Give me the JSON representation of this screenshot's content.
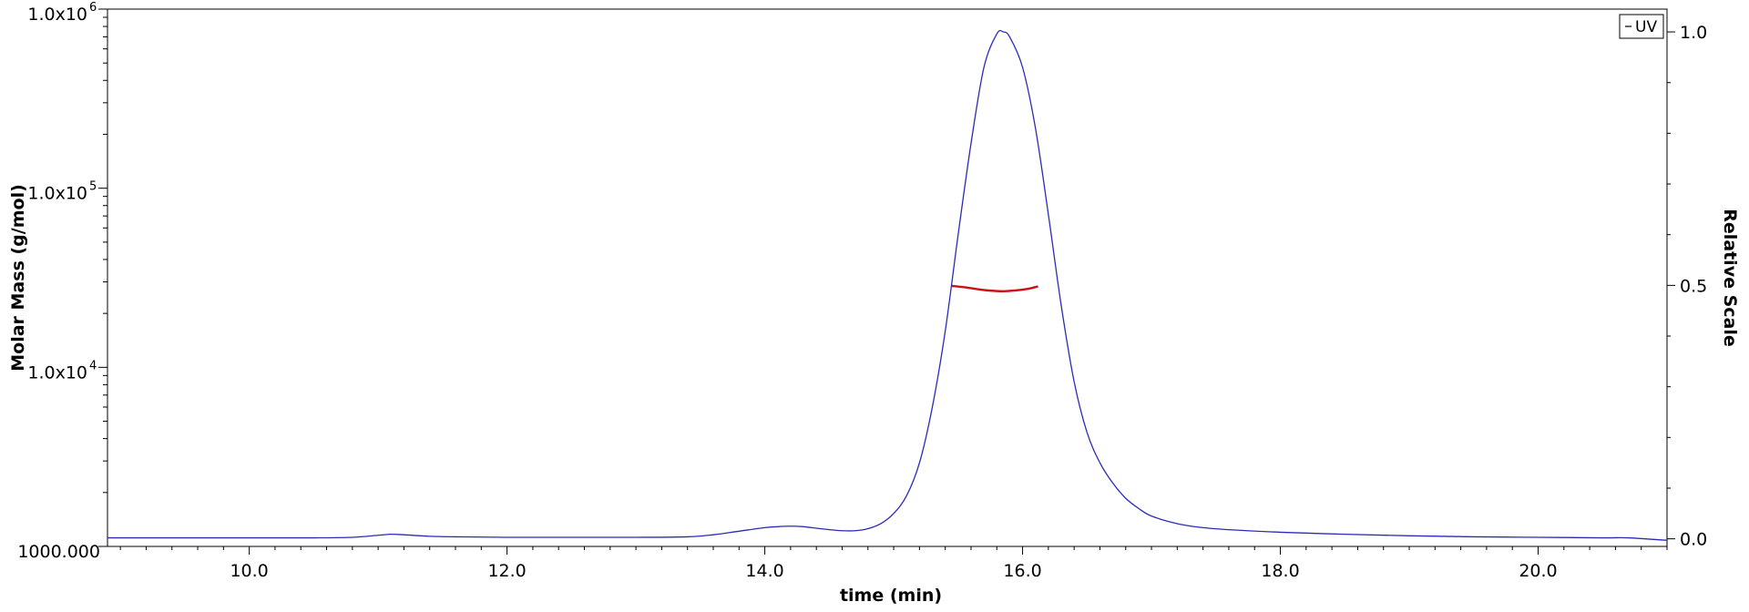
{
  "chart_data": {
    "type": "line",
    "xlabel": "time (min)",
    "ylabel_left": "Molar Mass (g/mol)",
    "ylabel_right": "Relative Scale",
    "xlim": [
      8.9,
      21.0
    ],
    "x_ticks": [
      10.0,
      12.0,
      14.0,
      16.0,
      18.0,
      20.0
    ],
    "x_tick_labels": [
      "10.0",
      "12.0",
      "14.0",
      "16.0",
      "18.0",
      "20.0"
    ],
    "y_left": {
      "scale": "log",
      "lim": [
        1000,
        1000000
      ],
      "ticks": [
        1000,
        10000,
        100000,
        1000000
      ],
      "tick_labels": [
        {
          "base": "1000.000",
          "exp": ""
        },
        {
          "base": "1.0x10",
          "exp": "4"
        },
        {
          "base": "1.0x10",
          "exp": "5"
        },
        {
          "base": "1.0x10",
          "exp": "6"
        }
      ]
    },
    "y_right": {
      "scale": "linear",
      "lim": [
        -0.015,
        1.045
      ],
      "ticks": [
        0.0,
        0.5,
        1.0
      ],
      "tick_labels": [
        "0.0",
        "0.5",
        "1.0"
      ]
    },
    "grid": false,
    "legend": {
      "position": "top-right",
      "entries": [
        "UV"
      ]
    },
    "series": [
      {
        "name": "UV",
        "axis": "right",
        "color": "#2b2bb8",
        "x": [
          8.9,
          9.5,
          10.0,
          10.5,
          10.8,
          11.0,
          11.1,
          11.2,
          11.4,
          11.6,
          12.0,
          12.5,
          13.0,
          13.4,
          13.6,
          13.8,
          14.0,
          14.1,
          14.2,
          14.3,
          14.4,
          14.5,
          14.6,
          14.7,
          14.8,
          14.9,
          15.0,
          15.1,
          15.2,
          15.3,
          15.4,
          15.5,
          15.6,
          15.7,
          15.8,
          15.85,
          15.9,
          16.0,
          16.1,
          16.2,
          16.3,
          16.4,
          16.5,
          16.6,
          16.7,
          16.8,
          16.9,
          17.0,
          17.2,
          17.4,
          17.6,
          18.0,
          18.5,
          19.0,
          19.5,
          20.0,
          20.5,
          20.7,
          21.0
        ],
        "y": [
          0.002,
          0.002,
          0.002,
          0.002,
          0.003,
          0.007,
          0.009,
          0.008,
          0.005,
          0.004,
          0.003,
          0.003,
          0.003,
          0.004,
          0.008,
          0.015,
          0.022,
          0.024,
          0.025,
          0.024,
          0.021,
          0.018,
          0.016,
          0.016,
          0.02,
          0.03,
          0.05,
          0.085,
          0.15,
          0.26,
          0.41,
          0.6,
          0.78,
          0.93,
          0.996,
          1.0,
          0.99,
          0.93,
          0.81,
          0.64,
          0.46,
          0.31,
          0.21,
          0.15,
          0.11,
          0.08,
          0.06,
          0.045,
          0.03,
          0.022,
          0.018,
          0.013,
          0.009,
          0.006,
          0.004,
          0.003,
          0.002,
          0.002,
          -0.003
        ]
      },
      {
        "name": "Molar Mass",
        "axis": "left",
        "color": "#cc1111",
        "x": [
          15.45,
          15.55,
          15.65,
          15.75,
          15.85,
          15.95,
          16.05,
          16.12
        ],
        "y": [
          28500,
          28000,
          27300,
          26800,
          26600,
          26900,
          27500,
          28300
        ]
      }
    ]
  }
}
